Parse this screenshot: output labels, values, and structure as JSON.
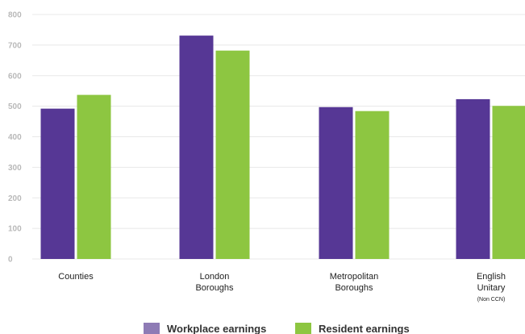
{
  "chart_data": {
    "type": "bar",
    "title": "",
    "xlabel": "",
    "ylabel": "",
    "ylim": [
      0,
      800
    ],
    "y_ticks": [
      0,
      100,
      200,
      300,
      400,
      500,
      600,
      700,
      800
    ],
    "grid": true,
    "legend_position": "bottom-center",
    "categories": [
      {
        "lines": [
          "Counties"
        ],
        "note": ""
      },
      {
        "lines": [
          "London",
          "Boroughs"
        ],
        "note": ""
      },
      {
        "lines": [
          "Metropolitan",
          "Boroughs"
        ],
        "note": ""
      },
      {
        "lines": [
          "English",
          "Unitary"
        ],
        "note": "(Non CCN)"
      }
    ],
    "series": [
      {
        "name": "Workplace earnings",
        "color": "#563795",
        "legend_color": "#8e7bb5",
        "values": [
          492,
          731,
          497,
          523
        ]
      },
      {
        "name": "Resident earnings",
        "color": "#8dc641",
        "legend_color": "#8dc641",
        "values": [
          537,
          682,
          484,
          501
        ]
      }
    ]
  }
}
